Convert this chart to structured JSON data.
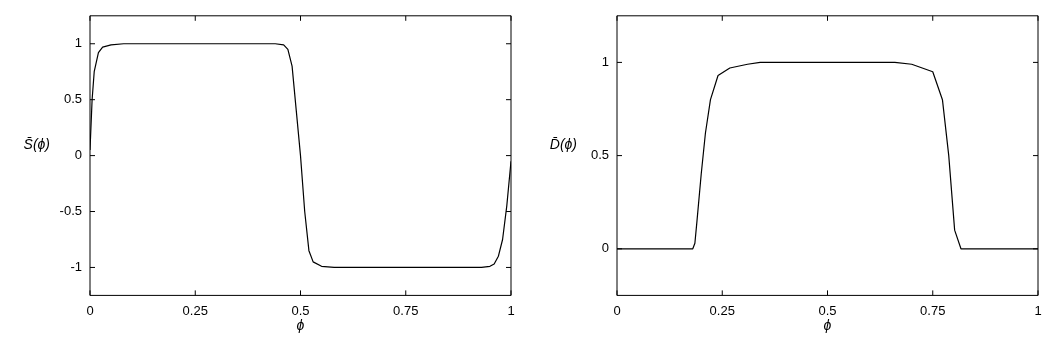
{
  "chart_data": [
    {
      "type": "line",
      "xlabel": "ϕ",
      "ylabel": "S̄(ϕ)",
      "xlim": [
        0,
        1
      ],
      "xticks": [
        0,
        0.25,
        0.5,
        0.75,
        1
      ],
      "ylim": [
        -1.25,
        1.25
      ],
      "yticks": [
        -1,
        -0.5,
        0,
        0.5,
        1
      ],
      "marker": "none",
      "line_style": "solid",
      "series": [
        {
          "color": "#000000",
          "x": [
            0,
            0.005,
            0.01,
            0.02,
            0.03,
            0.05,
            0.08,
            0.44,
            0.46,
            0.47,
            0.48,
            0.49,
            0.5,
            0.51,
            0.52,
            0.53,
            0.55,
            0.58,
            0.93,
            0.95,
            0.96,
            0.97,
            0.98,
            0.99,
            1
          ],
          "values": [
            0.05,
            0.5,
            0.75,
            0.92,
            0.97,
            0.99,
            1,
            1,
            0.99,
            0.95,
            0.8,
            0.4,
            0,
            -0.5,
            -0.85,
            -0.95,
            -0.99,
            -1,
            -1,
            -0.99,
            -0.97,
            -0.9,
            -0.75,
            -0.45,
            -0.05
          ]
        }
      ]
    },
    {
      "type": "line",
      "xlabel": "ϕ",
      "ylabel": "D̄(ϕ)",
      "xlim": [
        0,
        1
      ],
      "xticks": [
        0,
        0.25,
        0.5,
        0.75,
        1
      ],
      "ylim": [
        -0.25,
        1.25
      ],
      "yticks": [
        0,
        0.5,
        1
      ],
      "marker": "none",
      "line_style": "solid",
      "series": [
        {
          "color": "#000000",
          "x": [
            0,
            0.18,
            0.185,
            0.19,
            0.2,
            0.21,
            0.222,
            0.24,
            0.268,
            0.31,
            0.34,
            0.66,
            0.7,
            0.75,
            0.773,
            0.788,
            0.802,
            0.817,
            1
          ],
          "values": [
            0,
            0,
            0.03,
            0.15,
            0.4,
            0.62,
            0.8,
            0.93,
            0.97,
            0.99,
            1,
            1,
            0.99,
            0.95,
            0.8,
            0.5,
            0.1,
            0,
            0
          ]
        }
      ]
    }
  ]
}
